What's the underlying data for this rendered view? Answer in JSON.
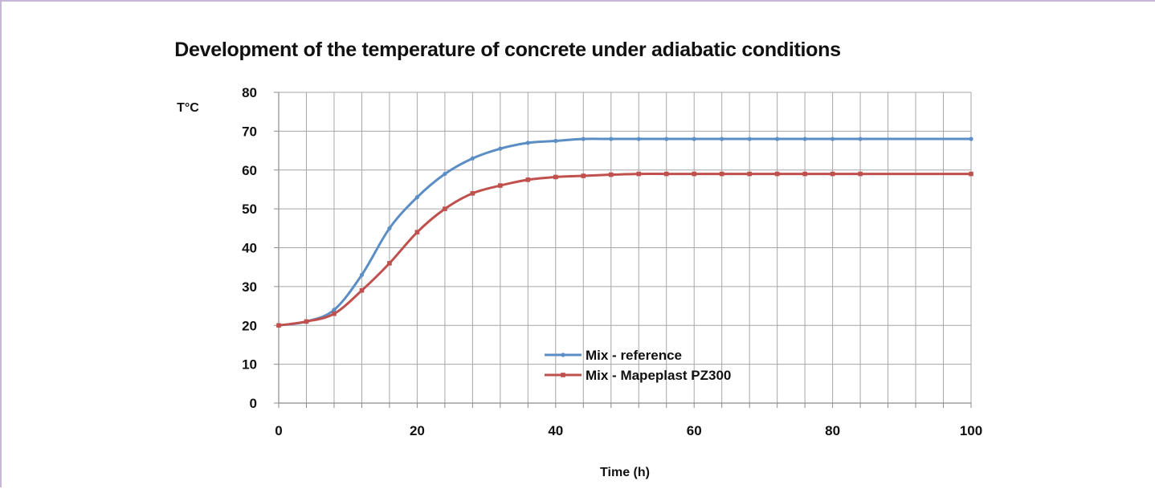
{
  "chart_data": {
    "type": "line",
    "title": "Development of the temperature of concrete under adiabatic conditions",
    "xlabel": "Time (h)",
    "ylabel": "T°C",
    "xlim": [
      0,
      100
    ],
    "ylim": [
      0,
      80
    ],
    "x_ticks": [
      0,
      20,
      40,
      60,
      80,
      100
    ],
    "y_ticks": [
      0,
      10,
      20,
      30,
      40,
      50,
      60,
      70,
      80
    ],
    "grid": true,
    "legend_position": "bottom-center",
    "series": [
      {
        "name": "Mix - reference",
        "color": "#5b8ec4",
        "x": [
          0,
          4,
          8,
          12,
          16,
          20,
          24,
          28,
          32,
          36,
          40,
          44,
          48,
          52,
          56,
          60,
          64,
          68,
          72,
          76,
          80,
          84,
          100
        ],
        "values": [
          20,
          21,
          24,
          33,
          45,
          53,
          59,
          63,
          65.5,
          67,
          67.5,
          68,
          68,
          68,
          68,
          68,
          68,
          68,
          68,
          68,
          68,
          68,
          68
        ]
      },
      {
        "name": "Mix - Mapeplast PZ300",
        "color": "#c0504d",
        "x": [
          0,
          4,
          8,
          12,
          16,
          20,
          24,
          28,
          32,
          36,
          40,
          44,
          48,
          52,
          56,
          60,
          64,
          68,
          72,
          76,
          80,
          84,
          100
        ],
        "values": [
          20,
          21,
          23,
          29,
          36,
          44,
          50,
          54,
          56,
          57.5,
          58.2,
          58.5,
          58.8,
          59,
          59,
          59,
          59,
          59,
          59,
          59,
          59,
          59,
          59
        ]
      }
    ]
  }
}
